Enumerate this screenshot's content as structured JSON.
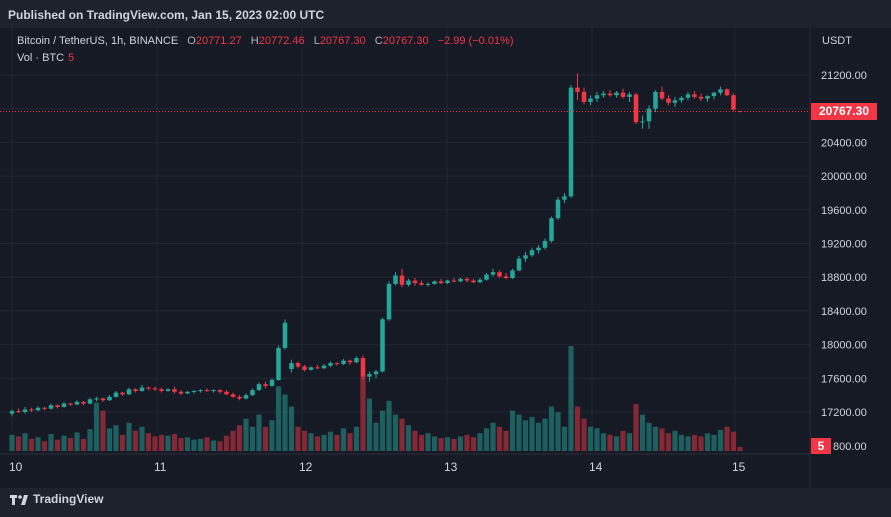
{
  "header": {
    "published": "Published on TradingView.com, Jan 15, 2023 02:00 UTC"
  },
  "legend": {
    "symbol": "Bitcoin / TetherUS, 1h, BINANCE",
    "open_label": "O",
    "open": "20771.27",
    "high_label": "H",
    "high": "20772.46",
    "low_label": "L",
    "low": "20767.30",
    "close_label": "C",
    "close": "20767.30",
    "change": "−2.99 (−0.01%)",
    "volume_label": "Vol · BTC",
    "volume": "5"
  },
  "footer": {
    "brand": "TradingView"
  },
  "colors": {
    "up": "#26a69a",
    "down": "#f23645",
    "background": "#161a25",
    "grid": "#232734"
  },
  "chart_data": {
    "type": "candlestick",
    "unit": "USDT",
    "ylim": [
      16700,
      21500
    ],
    "y_ticks": [
      17200,
      17600,
      18000,
      18400,
      18800,
      19200,
      19600,
      20000,
      20400,
      20800,
      21200
    ],
    "y_tick_labels": [
      "17200.00",
      "17600.00",
      "18000.00",
      "18400.00",
      "18800.00",
      "19200.00",
      "19600.00",
      "20000.00",
      "20400.00",
      "",
      "21200.00"
    ],
    "x_tick_labels": [
      "10",
      "11",
      "12",
      "13",
      "14",
      "15"
    ],
    "last_price": "20767.30",
    "last_volume": "5",
    "volume_tick_label": "800.00",
    "grid": true,
    "candles": [
      [
        17180,
        17230,
        17150,
        17210,
        20
      ],
      [
        17210,
        17240,
        17190,
        17200,
        18
      ],
      [
        17200,
        17260,
        17180,
        17230,
        22
      ],
      [
        17230,
        17250,
        17200,
        17220,
        15
      ],
      [
        17220,
        17270,
        17210,
        17250,
        17
      ],
      [
        17250,
        17260,
        17220,
        17240,
        12
      ],
      [
        17240,
        17300,
        17230,
        17280,
        21
      ],
      [
        17280,
        17290,
        17240,
        17260,
        14
      ],
      [
        17260,
        17320,
        17250,
        17300,
        19
      ],
      [
        17300,
        17310,
        17270,
        17290,
        16
      ],
      [
        17290,
        17340,
        17280,
        17320,
        23
      ],
      [
        17320,
        17330,
        17280,
        17300,
        15
      ],
      [
        17300,
        17370,
        17290,
        17350,
        27
      ],
      [
        17350,
        17380,
        17330,
        17360,
        60
      ],
      [
        17360,
        17370,
        17320,
        17340,
        50
      ],
      [
        17340,
        17400,
        17330,
        17380,
        28
      ],
      [
        17380,
        17450,
        17370,
        17430,
        32
      ],
      [
        17430,
        17440,
        17390,
        17410,
        20
      ],
      [
        17410,
        17490,
        17400,
        17470,
        35
      ],
      [
        17470,
        17480,
        17430,
        17450,
        25
      ],
      [
        17450,
        17520,
        17440,
        17490,
        30
      ],
      [
        17490,
        17500,
        17460,
        17480,
        22
      ],
      [
        17480,
        17500,
        17450,
        17470,
        18
      ],
      [
        17470,
        17490,
        17430,
        17450,
        20
      ],
      [
        17450,
        17480,
        17440,
        17470,
        19
      ],
      [
        17470,
        17500,
        17420,
        17440,
        21
      ],
      [
        17440,
        17460,
        17400,
        17420,
        16
      ],
      [
        17420,
        17450,
        17410,
        17440,
        17
      ],
      [
        17440,
        17460,
        17420,
        17450,
        14
      ],
      [
        17450,
        17470,
        17430,
        17460,
        15
      ],
      [
        17460,
        17480,
        17440,
        17450,
        17
      ],
      [
        17450,
        17470,
        17430,
        17460,
        13
      ],
      [
        17460,
        17470,
        17420,
        17440,
        12
      ],
      [
        17440,
        17460,
        17400,
        17410,
        19
      ],
      [
        17410,
        17430,
        17370,
        17380,
        25
      ],
      [
        17380,
        17400,
        17340,
        17360,
        32
      ],
      [
        17360,
        17420,
        17350,
        17400,
        40
      ],
      [
        17400,
        17480,
        17390,
        17460,
        30
      ],
      [
        17460,
        17550,
        17450,
        17530,
        45
      ],
      [
        17530,
        17560,
        17480,
        17510,
        30
      ],
      [
        17510,
        17600,
        17500,
        17580,
        38
      ],
      [
        17580,
        17990,
        17570,
        17960,
        80
      ],
      [
        17960,
        18300,
        17940,
        18260,
        70
      ],
      [
        17710,
        17820,
        17670,
        17780,
        55
      ],
      [
        17780,
        17800,
        17720,
        17740,
        30
      ],
      [
        17740,
        17760,
        17680,
        17700,
        25
      ],
      [
        17700,
        17740,
        17690,
        17730,
        22
      ],
      [
        17730,
        17760,
        17710,
        17720,
        18
      ],
      [
        17720,
        17770,
        17710,
        17750,
        20
      ],
      [
        17750,
        17800,
        17730,
        17780,
        24
      ],
      [
        17780,
        17790,
        17750,
        17770,
        20
      ],
      [
        17770,
        17830,
        17760,
        17810,
        28
      ],
      [
        17810,
        17820,
        17760,
        17790,
        22
      ],
      [
        17790,
        17860,
        17780,
        17840,
        30
      ],
      [
        17840,
        17870,
        17580,
        17620,
        95
      ],
      [
        17620,
        17680,
        17560,
        17650,
        65
      ],
      [
        17650,
        17700,
        17600,
        17680,
        35
      ],
      [
        17680,
        18320,
        17670,
        18300,
        50
      ],
      [
        18300,
        18750,
        18280,
        18720,
        62
      ],
      [
        18720,
        18860,
        18700,
        18820,
        45
      ],
      [
        18820,
        18900,
        18680,
        18710,
        40
      ],
      [
        18710,
        18780,
        18690,
        18760,
        32
      ],
      [
        18760,
        18790,
        18700,
        18730,
        25
      ],
      [
        18730,
        18760,
        18700,
        18710,
        20
      ],
      [
        18710,
        18740,
        18690,
        18720,
        22
      ],
      [
        18720,
        18760,
        18710,
        18750,
        18
      ],
      [
        18750,
        18780,
        18720,
        18730,
        16
      ],
      [
        18730,
        18770,
        18720,
        18760,
        17
      ],
      [
        18760,
        18790,
        18740,
        18750,
        15
      ],
      [
        18750,
        18790,
        18740,
        18780,
        18
      ],
      [
        18780,
        18800,
        18740,
        18760,
        20
      ],
      [
        18760,
        18780,
        18730,
        18740,
        17
      ],
      [
        18740,
        18790,
        18730,
        18770,
        22
      ],
      [
        18770,
        18850,
        18760,
        18830,
        28
      ],
      [
        18830,
        18900,
        18810,
        18860,
        35
      ],
      [
        18860,
        18880,
        18790,
        18810,
        30
      ],
      [
        18810,
        18850,
        18780,
        18790,
        25
      ],
      [
        18790,
        18900,
        18780,
        18880,
        50
      ],
      [
        18880,
        19050,
        18870,
        19020,
        45
      ],
      [
        19020,
        19100,
        18980,
        19060,
        38
      ],
      [
        19060,
        19150,
        19040,
        19120,
        42
      ],
      [
        19120,
        19180,
        19080,
        19150,
        35
      ],
      [
        19150,
        19260,
        19130,
        19230,
        40
      ],
      [
        19230,
        19520,
        19210,
        19500,
        55
      ],
      [
        19500,
        19750,
        19480,
        19720,
        48
      ],
      [
        19720,
        19800,
        19680,
        19760,
        30
      ],
      [
        19760,
        21080,
        19740,
        21050,
        130
      ],
      [
        21050,
        21220,
        20900,
        21000,
        55
      ],
      [
        21000,
        21050,
        20850,
        20880,
        40
      ],
      [
        20880,
        20960,
        20840,
        20920,
        30
      ],
      [
        20920,
        21000,
        20880,
        20960,
        28
      ],
      [
        20960,
        21010,
        20930,
        20980,
        22
      ],
      [
        20980,
        21020,
        20940,
        20960,
        20
      ],
      [
        20960,
        21010,
        20930,
        20990,
        18
      ],
      [
        20990,
        21040,
        20920,
        20940,
        25
      ],
      [
        20940,
        21000,
        20880,
        20970,
        22
      ],
      [
        20970,
        20990,
        20620,
        20640,
        58
      ],
      [
        20640,
        20720,
        20560,
        20650,
        45
      ],
      [
        20650,
        20840,
        20560,
        20800,
        35
      ],
      [
        20800,
        21020,
        20760,
        21000,
        30
      ],
      [
        21000,
        21060,
        20900,
        20920,
        28
      ],
      [
        20920,
        20960,
        20840,
        20870,
        22
      ],
      [
        20870,
        20940,
        20820,
        20900,
        25
      ],
      [
        20900,
        20950,
        20870,
        20930,
        20
      ],
      [
        20930,
        21000,
        20900,
        20970,
        18
      ],
      [
        20970,
        21010,
        20920,
        20940,
        20
      ],
      [
        20940,
        20980,
        20890,
        20920,
        18
      ],
      [
        20920,
        20960,
        20880,
        20950,
        22
      ],
      [
        20950,
        21000,
        20910,
        20990,
        20
      ],
      [
        20990,
        21060,
        20960,
        21030,
        26
      ],
      [
        21030,
        21040,
        20950,
        20960,
        30
      ],
      [
        20960,
        20980,
        20770,
        20790,
        24
      ],
      [
        20771.27,
        20772.46,
        20767.3,
        20767.3,
        5
      ]
    ]
  }
}
